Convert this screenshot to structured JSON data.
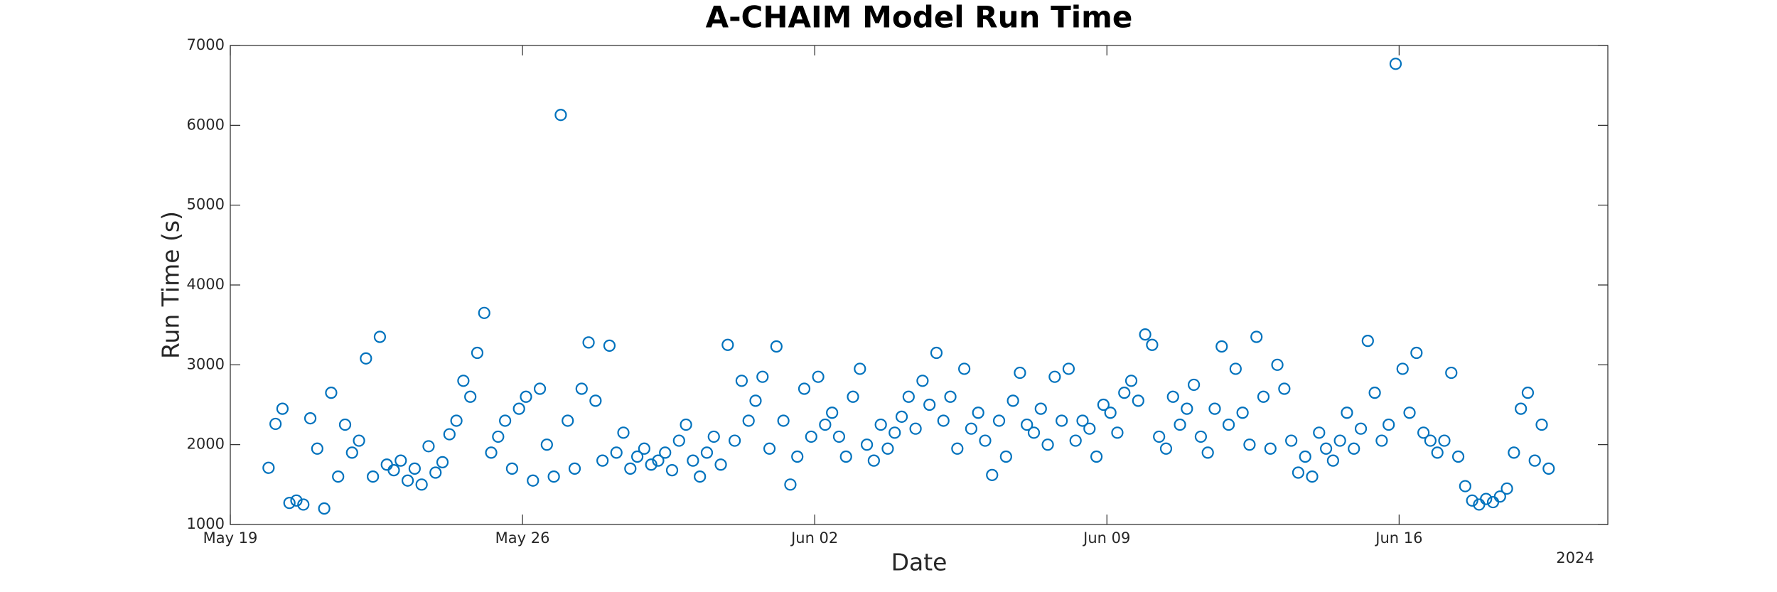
{
  "chart_data": {
    "type": "scatter",
    "title": "A-CHAIM Model Run Time",
    "x_label": "Date",
    "y_label": "Run Time (s)",
    "x_year_label": "2024",
    "color": "#0072bd",
    "xlim": [
      "2024-05-19T00:00",
      "2024-06-21T00:00"
    ],
    "xticks": [
      {
        "value": "2024-05-19T00:00",
        "label": "May 19"
      },
      {
        "value": "2024-05-26T00:00",
        "label": "May 26"
      },
      {
        "value": "2024-06-02T00:00",
        "label": "Jun 02"
      },
      {
        "value": "2024-06-09T00:00",
        "label": "Jun 09"
      },
      {
        "value": "2024-06-16T00:00",
        "label": "Jun 16"
      }
    ],
    "ylim": [
      1000,
      7000
    ],
    "yticks": [
      1000,
      2000,
      3000,
      4000,
      5000,
      6000,
      7000
    ],
    "grid": false,
    "x": [
      "2024-05-19T22:00",
      "2024-05-20T02:00",
      "2024-05-20T06:00",
      "2024-05-20T10:00",
      "2024-05-20T14:00",
      "2024-05-20T18:00",
      "2024-05-20T22:00",
      "2024-05-21T02:00",
      "2024-05-21T06:00",
      "2024-05-21T10:00",
      "2024-05-21T14:00",
      "2024-05-21T18:00",
      "2024-05-21T22:00",
      "2024-05-22T02:00",
      "2024-05-22T06:00",
      "2024-05-22T10:00",
      "2024-05-22T14:00",
      "2024-05-22T18:00",
      "2024-05-22T22:00",
      "2024-05-23T02:00",
      "2024-05-23T06:00",
      "2024-05-23T10:00",
      "2024-05-23T14:00",
      "2024-05-23T18:00",
      "2024-05-23T22:00",
      "2024-05-24T02:00",
      "2024-05-24T06:00",
      "2024-05-24T10:00",
      "2024-05-24T14:00",
      "2024-05-24T18:00",
      "2024-05-24T22:00",
      "2024-05-25T02:00",
      "2024-05-25T06:00",
      "2024-05-25T10:00",
      "2024-05-25T14:00",
      "2024-05-25T18:00",
      "2024-05-25T22:00",
      "2024-05-26T02:00",
      "2024-05-26T06:00",
      "2024-05-26T10:00",
      "2024-05-26T14:00",
      "2024-05-26T18:00",
      "2024-05-26T22:00",
      "2024-05-27T02:00",
      "2024-05-27T06:00",
      "2024-05-27T10:00",
      "2024-05-27T14:00",
      "2024-05-27T18:00",
      "2024-05-27T22:00",
      "2024-05-28T02:00",
      "2024-05-28T06:00",
      "2024-05-28T10:00",
      "2024-05-28T14:00",
      "2024-05-28T18:00",
      "2024-05-28T22:00",
      "2024-05-29T02:00",
      "2024-05-29T06:00",
      "2024-05-29T10:00",
      "2024-05-29T14:00",
      "2024-05-29T18:00",
      "2024-05-29T22:00",
      "2024-05-30T02:00",
      "2024-05-30T06:00",
      "2024-05-30T10:00",
      "2024-05-30T14:00",
      "2024-05-30T18:00",
      "2024-05-30T22:00",
      "2024-05-31T02:00",
      "2024-05-31T06:00",
      "2024-05-31T10:00",
      "2024-05-31T14:00",
      "2024-05-31T18:00",
      "2024-05-31T22:00",
      "2024-06-01T02:00",
      "2024-06-01T06:00",
      "2024-06-01T10:00",
      "2024-06-01T14:00",
      "2024-06-01T18:00",
      "2024-06-01T22:00",
      "2024-06-02T02:00",
      "2024-06-02T06:00",
      "2024-06-02T10:00",
      "2024-06-02T14:00",
      "2024-06-02T18:00",
      "2024-06-02T22:00",
      "2024-06-03T02:00",
      "2024-06-03T06:00",
      "2024-06-03T10:00",
      "2024-06-03T14:00",
      "2024-06-03T18:00",
      "2024-06-03T22:00",
      "2024-06-04T02:00",
      "2024-06-04T06:00",
      "2024-06-04T10:00",
      "2024-06-04T14:00",
      "2024-06-04T18:00",
      "2024-06-04T22:00",
      "2024-06-05T02:00",
      "2024-06-05T06:00",
      "2024-06-05T10:00",
      "2024-06-05T14:00",
      "2024-06-05T18:00",
      "2024-06-05T22:00",
      "2024-06-06T02:00",
      "2024-06-06T06:00",
      "2024-06-06T10:00",
      "2024-06-06T14:00",
      "2024-06-06T18:00",
      "2024-06-06T22:00",
      "2024-06-07T02:00",
      "2024-06-07T06:00",
      "2024-06-07T10:00",
      "2024-06-07T14:00",
      "2024-06-07T18:00",
      "2024-06-07T22:00",
      "2024-06-08T02:00",
      "2024-06-08T06:00",
      "2024-06-08T10:00",
      "2024-06-08T14:00",
      "2024-06-08T18:00",
      "2024-06-08T22:00",
      "2024-06-09T02:00",
      "2024-06-09T06:00",
      "2024-06-09T10:00",
      "2024-06-09T14:00",
      "2024-06-09T18:00",
      "2024-06-09T22:00",
      "2024-06-10T02:00",
      "2024-06-10T06:00",
      "2024-06-10T10:00",
      "2024-06-10T14:00",
      "2024-06-10T18:00",
      "2024-06-10T22:00",
      "2024-06-11T02:00",
      "2024-06-11T06:00",
      "2024-06-11T10:00",
      "2024-06-11T14:00",
      "2024-06-11T18:00",
      "2024-06-11T22:00",
      "2024-06-12T02:00",
      "2024-06-12T06:00",
      "2024-06-12T10:00",
      "2024-06-12T14:00",
      "2024-06-12T18:00",
      "2024-06-12T22:00",
      "2024-06-13T02:00",
      "2024-06-13T06:00",
      "2024-06-13T10:00",
      "2024-06-13T14:00",
      "2024-06-13T18:00",
      "2024-06-13T22:00",
      "2024-06-14T02:00",
      "2024-06-14T06:00",
      "2024-06-14T10:00",
      "2024-06-14T14:00",
      "2024-06-14T18:00",
      "2024-06-14T22:00",
      "2024-06-15T02:00",
      "2024-06-15T06:00",
      "2024-06-15T10:00",
      "2024-06-15T14:00",
      "2024-06-15T18:00",
      "2024-06-15T22:00",
      "2024-06-16T02:00",
      "2024-06-16T06:00",
      "2024-06-16T10:00",
      "2024-06-16T14:00",
      "2024-06-16T18:00",
      "2024-06-16T22:00",
      "2024-06-17T02:00",
      "2024-06-17T06:00",
      "2024-06-17T10:00",
      "2024-06-17T14:00",
      "2024-06-17T18:00",
      "2024-06-17T22:00",
      "2024-06-18T02:00",
      "2024-06-18T06:00",
      "2024-06-18T10:00",
      "2024-06-18T14:00",
      "2024-06-18T18:00",
      "2024-06-18T22:00",
      "2024-06-19T02:00",
      "2024-06-19T06:00",
      "2024-06-19T10:00",
      "2024-06-19T14:00"
    ],
    "values": [
      1710,
      2260,
      2450,
      1270,
      1300,
      1250,
      2330,
      1950,
      1200,
      2650,
      1600,
      2250,
      1900,
      2050,
      3080,
      1600,
      3350,
      1750,
      1680,
      1800,
      1550,
      1700,
      1500,
      1980,
      1650,
      1780,
      2130,
      2300,
      2800,
      2600,
      3150,
      3650,
      1900,
      2100,
      2300,
      1700,
      2450,
      2600,
      1550,
      2700,
      2000,
      1600,
      6130,
      2300,
      1700,
      2700,
      3280,
      2550,
      1800,
      3240,
      1900,
      2150,
      1700,
      1850,
      1950,
      1750,
      1800,
      1900,
      1680,
      2050,
      2250,
      1800,
      1600,
      1900,
      2100,
      1750,
      3250,
      2050,
      2800,
      2300,
      2550,
      2850,
      1950,
      3230,
      2300,
      1500,
      1850,
      2700,
      2100,
      2850,
      2250,
      2400,
      2100,
      1850,
      2600,
      2950,
      2000,
      1800,
      2250,
      1950,
      2150,
      2350,
      2600,
      2200,
      2800,
      2500,
      3150,
      2300,
      2600,
      1950,
      2950,
      2200,
      2400,
      2050,
      1620,
      2300,
      1850,
      2550,
      2900,
      2250,
      2150,
      2450,
      2000,
      2850,
      2300,
      2950,
      2050,
      2300,
      2200,
      1850,
      2500,
      2400,
      2150,
      2650,
      2800,
      2550,
      3380,
      3250,
      2100,
      1950,
      2600,
      2250,
      2450,
      2750,
      2100,
      1900,
      2450,
      3230,
      2250,
      2950,
      2400,
      2000,
      3350,
      2600,
      1950,
      3000,
      2700,
      2050,
      1650,
      1850,
      1600,
      2150,
      1950,
      1800,
      2050,
      2400,
      1950,
      2200,
      3300,
      2650,
      2050,
      2250,
      6770,
      2950,
      2400,
      3150,
      2150,
      2050,
      1900,
      2050,
      2900,
      1850,
      1480,
      1300,
      1250,
      1320,
      1280,
      1350,
      1450,
      1900,
      2450,
      2650,
      1800,
      2250,
      1700
    ]
  }
}
